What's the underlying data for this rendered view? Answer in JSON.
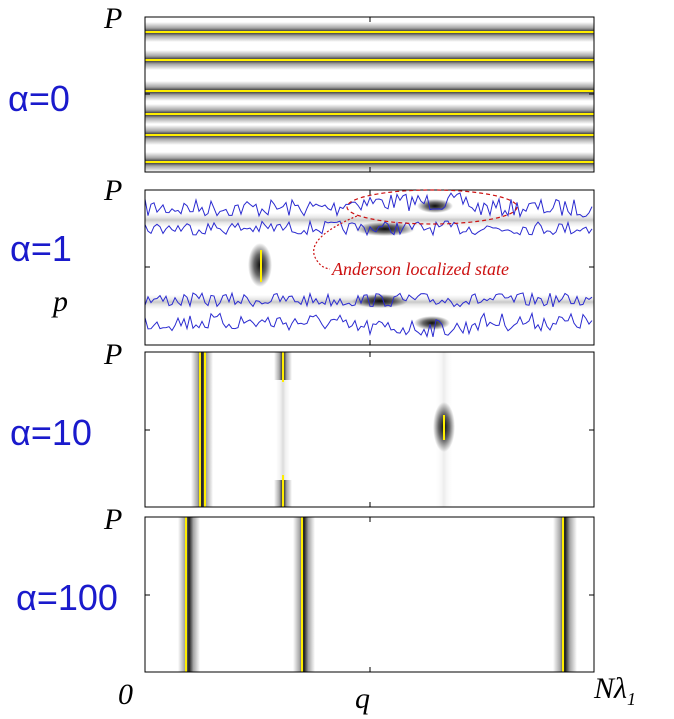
{
  "colors": {
    "alpha_label": "#1a1acc",
    "annotation": "#cc1111",
    "highlight": "#ffee00",
    "contour": "#2a2ad0",
    "frame": "#000000"
  },
  "panels": [
    {
      "alpha_label": "α=0",
      "p_label": "P"
    },
    {
      "alpha_label": "α=1",
      "p_label": "P",
      "extra_label": "p",
      "annotation": "Anderson localized state"
    },
    {
      "alpha_label": "α=10",
      "p_label": "P"
    },
    {
      "alpha_label": "α=100",
      "p_label": "P"
    }
  ],
  "x_axis": {
    "left_label": "0",
    "mid_label": "q",
    "right_label": "Nλ",
    "right_sub": "1"
  }
}
